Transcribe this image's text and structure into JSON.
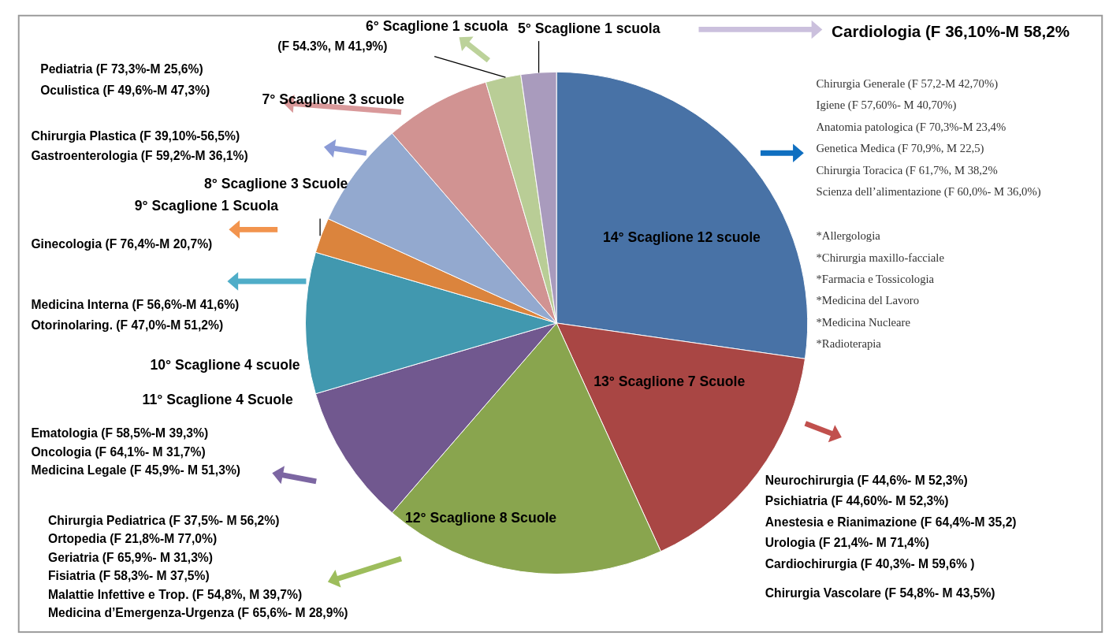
{
  "chart_data": {
    "type": "pie",
    "categories": [
      "14° Scaglione 12 scuole",
      "13° Scaglione 7 Scuole",
      "12° Scaglione 8 Scuole",
      "11° Scaglione 4 Scuole",
      "10° Scaglione 4 scuole",
      "9° Scaglione 1 Scuola",
      "8° Scaglione 3 Scuole",
      "7° Scaglione 3 scuole",
      "6° Scaglione 1 scuola",
      "5° Scaglione 1 scuola"
    ],
    "values": [
      12,
      7,
      8,
      4,
      4,
      1,
      3,
      3,
      1,
      1
    ],
    "colors": [
      "#4872a6",
      "#a94644",
      "#89a54e",
      "#71588f",
      "#4198af",
      "#db843d",
      "#93a9cf",
      "#d19392",
      "#b9cd96",
      "#a99bbd"
    ],
    "annotations": [
      "Cardiologia (F 36,10%-M 58,2%",
      "Chirurgia Generale (F 57,2-M 42,70%)",
      "Igiene (F 57,60%- M 40,70%)",
      "Anatomia patologica (F 70,3%-M 23,4%",
      "Genetica Medica (F 70,9%, M 22,5)",
      "Chirurgia Toracica (F 61,7%, M 38,2%",
      "Scienza dell’alimentazione (F 60,0%- M 36,0%)",
      "*Allergologia",
      "*Chirurgia maxillo-facciale",
      "*Farmacia e Tossicologia",
      "*Medicina del Lavoro",
      "*Medicina Nucleare",
      "*Radioterapia",
      "Neurochirurgia (F 44,6%- M 52,3%)",
      "Psichiatria (F 44,60%- M 52,3%)",
      "Anestesia e Rianimazione (F 64,4%-M 35,2)",
      "Urologia (F 21,4%- M 71,4%)",
      "Cardiochirurgia (F 40,3%- M 59,6% )",
      "Chirurgia Vascolare (F 54,8%- M 43,5%)",
      "Chirurgia Pediatrica (F 37,5%- M 56,2%)",
      "Ortopedia (F 21,8%-M 77,0%)",
      "Geriatria (F 65,9%- M 31,3%)",
      "Fisiatria (F 58,3%- M 37,5%)",
      "Malattie Infettive e Trop. (F 54,8%, M 39,7%)",
      "Medicina d’Emergenza-Urgenza (F 65,6%- M 28,9%)",
      "Ematologia (F 58,5%-M 39,3%)",
      "Oncologia (F 64,1%- M 31,7%)",
      "Medicina Legale (F 45,9%- M 51,3%)",
      "Medicina Interna (F 56,6%-M 41,6%)",
      "Otorinolaring. (F 47,0%-M 51,2%)",
      "Ginecologia (F 76,4%-M 20,7%)",
      "Chirurgia Plastica (F 39,10%-56,5%)",
      "Gastroenterologia (F 59,2%-M 36,1%)",
      "Pediatria (F 73,3%-M 25,6%)",
      "Oculistica (F 49,6%-M 47,3%)",
      "(F 54.3%, M 41,9%)"
    ]
  }
}
